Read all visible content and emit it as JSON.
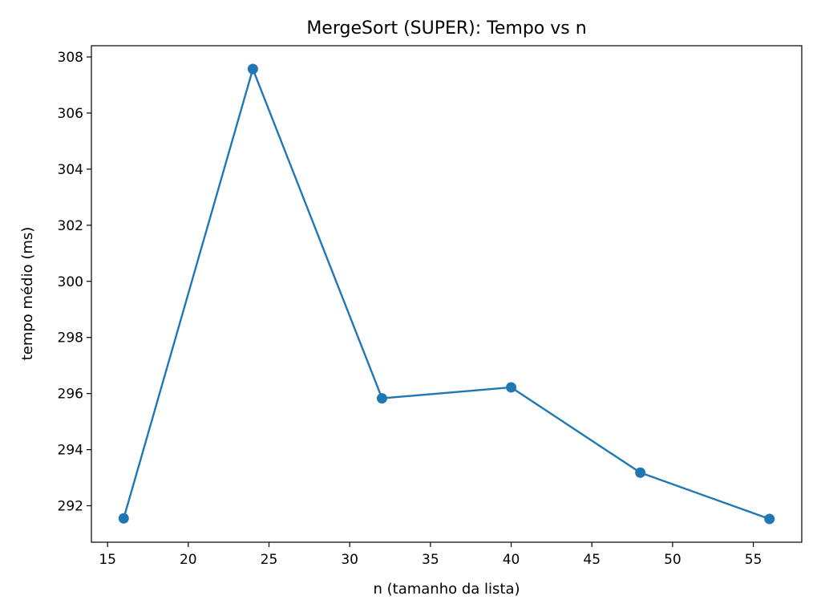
{
  "chart_data": {
    "type": "line",
    "title": "MergeSort (SUPER): Tempo vs n",
    "xlabel": "n (tamanho da lista)",
    "ylabel": "tempo médio (ms)",
    "x": [
      16,
      24,
      32,
      40,
      48,
      56
    ],
    "series": [
      {
        "values": [
          291.55,
          307.57,
          295.83,
          296.22,
          293.18,
          291.53
        ]
      }
    ],
    "xlim": [
      14,
      58
    ],
    "ylim": [
      290.7,
      308.4
    ],
    "xticks": [
      15,
      20,
      25,
      30,
      35,
      40,
      45,
      50,
      55
    ],
    "yticks": [
      292,
      294,
      296,
      298,
      300,
      302,
      304,
      306,
      308
    ],
    "grid": false,
    "line_color": "#1f77b4",
    "marker": "circle"
  }
}
